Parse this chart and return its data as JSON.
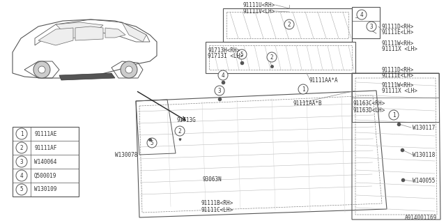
{
  "bg_color": "#ffffff",
  "diagram_id": "A914001169",
  "line_color": "#666666",
  "legend_items": [
    {
      "num": "1",
      "code": "91111AE"
    },
    {
      "num": "2",
      "code": "91111AF"
    },
    {
      "num": "3",
      "code": "W140064"
    },
    {
      "num": "4",
      "code": "Q500019"
    },
    {
      "num": "5",
      "code": "W130109"
    }
  ]
}
